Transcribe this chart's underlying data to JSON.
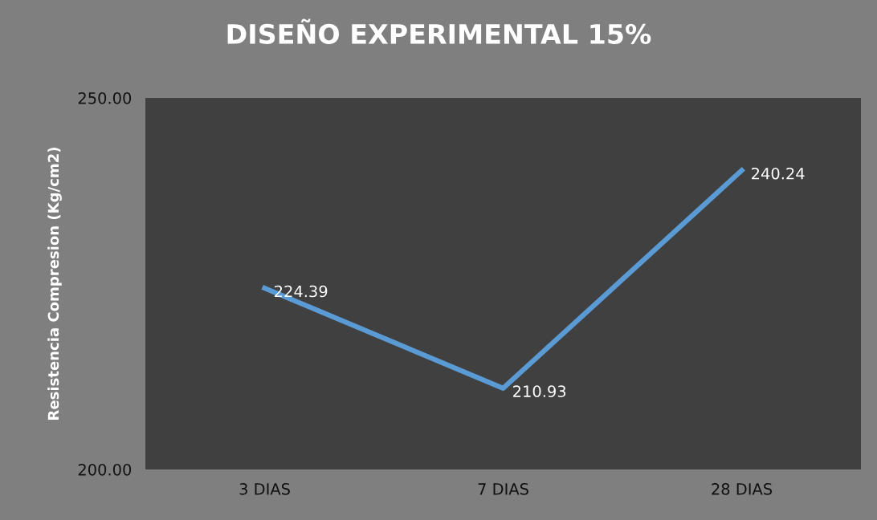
{
  "chart_data": {
    "type": "line",
    "title": "DISEÑO EXPERIMENTAL 15%",
    "ylabel": "Resistencia Compresion (Kg/cm2)",
    "categories": [
      "3 DIAS",
      "7 DIAS",
      "28 DIAS"
    ],
    "series": [
      {
        "color": "#5b9bd5",
        "values": [
          224.39,
          210.93,
          240.24
        ]
      }
    ],
    "ylim": [
      200,
      250
    ],
    "yticks": [
      {
        "value": 200,
        "label": "200.00"
      },
      {
        "value": 250,
        "label": "250.00"
      }
    ],
    "data_labels": true,
    "grid": false,
    "marker": "none",
    "line_style": "solid"
  }
}
